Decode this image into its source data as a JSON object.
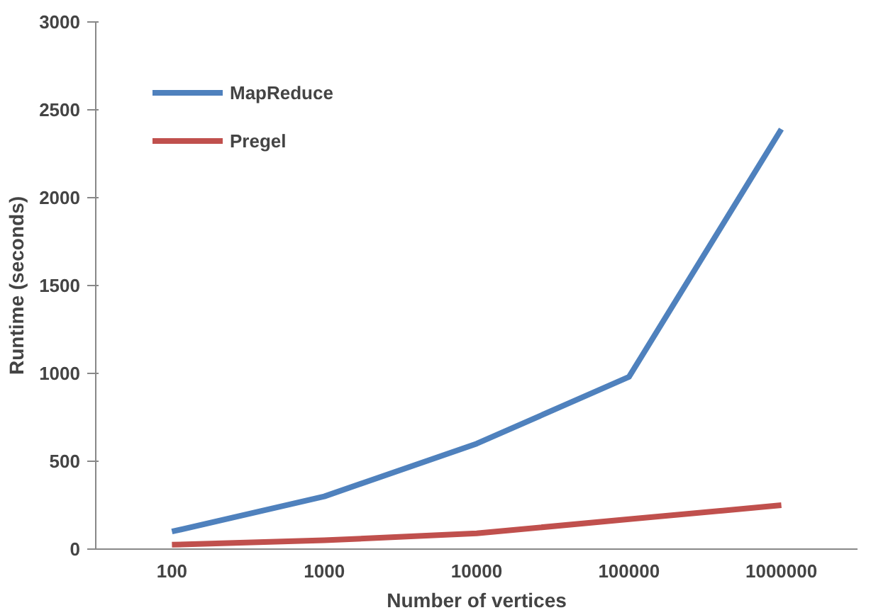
{
  "chart_data": {
    "type": "line",
    "xlabel": "Number of vertices",
    "ylabel": "Runtime (seconds)",
    "categories": [
      "100",
      "1000",
      "10000",
      "100000",
      "1000000"
    ],
    "series": [
      {
        "name": "MapReduce",
        "color": "#4f81bd",
        "values": [
          100,
          300,
          600,
          980,
          2390
        ]
      },
      {
        "name": "Pregel",
        "color": "#c0504d",
        "values": [
          25,
          50,
          90,
          170,
          250
        ]
      }
    ],
    "ylim": [
      0,
      3000
    ],
    "yticks": [
      0,
      500,
      1000,
      1500,
      2000,
      2500,
      3000
    ],
    "grid": false,
    "legend": "top left",
    "marker": "none",
    "line_style": "solid"
  }
}
